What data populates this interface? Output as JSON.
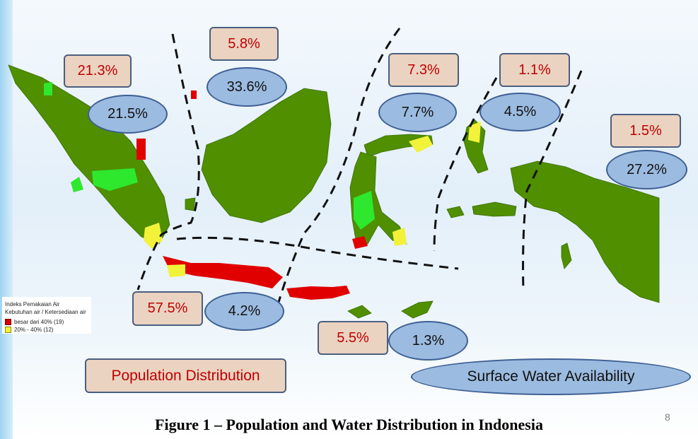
{
  "population_labels": {
    "sumatra": "21.3%",
    "kalimantan": "5.8%",
    "sulawesi": "7.3%",
    "maluku": "1.1%",
    "papua": "1.5%",
    "java": "57.5%",
    "nusa_tenggara": "5.5%"
  },
  "water_labels": {
    "sumatra": "21.5%",
    "kalimantan": "33.6%",
    "sulawesi": "7.7%",
    "maluku": "4.5%",
    "papua": "27.2%",
    "java": "4.2%",
    "nusa_tenggara": "1.3%"
  },
  "legend": {
    "title_line1": "Indeks Pemakaian Air",
    "title_line2": "Kebutuhan air / Ketersediaan air",
    "item1": "besar dari 40%  (19)",
    "item2": "20% - 40%  (12)"
  },
  "key": {
    "population": "Population Distribution",
    "surface_water": "Surface Water Availability"
  },
  "caption": "Figure 1 – Population and Water Distribution in Indonesia",
  "page_number": "8",
  "colors": {
    "land": "#4f8f00",
    "low_index": "#2ee82e",
    "medium_index": "#f2f23a",
    "high_index": "#e00000",
    "box_fill": "#ebd3c1",
    "oval_fill": "#9bbbe0"
  }
}
